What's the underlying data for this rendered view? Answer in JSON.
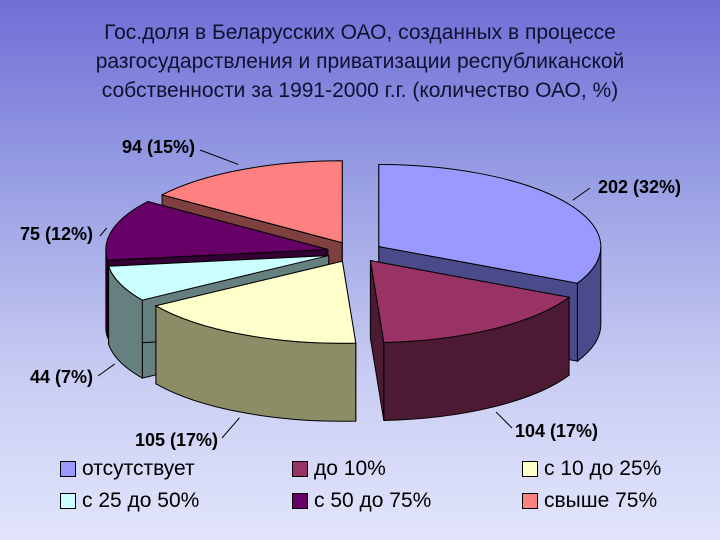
{
  "page": {
    "title": "Гос.доля в Беларусских ОАО, созданных в процессе разгосударствления и приватизации республиканской собственности за 1991-2000 г.г. (количество ОАО, %)"
  },
  "chart_data": {
    "type": "pie",
    "style": "3d-exploded",
    "title": "Гос.доля в Беларусских ОАО, созданных в процессе разгосударствления и приватизации республиканской собственности за 1991-2000 г.г. (количество ОАО, %)",
    "legend_position": "bottom",
    "slices": [
      {
        "name": "отсутствует",
        "value": 202,
        "percent": 32,
        "label": "202 (32%)",
        "color": "#9999FF",
        "side_color": "#4B4B8C"
      },
      {
        "name": "до 10%",
        "value": 104,
        "percent": 17,
        "label": "104 (17%)",
        "color": "#993366",
        "side_color": "#4C1A33"
      },
      {
        "name": "с 10 до 25%",
        "value": 105,
        "percent": 17,
        "label": "105 (17%)",
        "color": "#FFFFCC",
        "side_color": "#8C8C66"
      },
      {
        "name": "с 25 до 50%",
        "value": 44,
        "percent": 7,
        "label": "44 (7%)",
        "color": "#CCFFFF",
        "side_color": "#668080"
      },
      {
        "name": "с 50 до 75%",
        "value": 75,
        "percent": 12,
        "label": "75 (12%)",
        "color": "#660066",
        "side_color": "#330033"
      },
      {
        "name": "свыше 75%",
        "value": 94,
        "percent": 15,
        "label": "94 (15%)",
        "color": "#FF8080",
        "side_color": "#804040"
      }
    ]
  }
}
